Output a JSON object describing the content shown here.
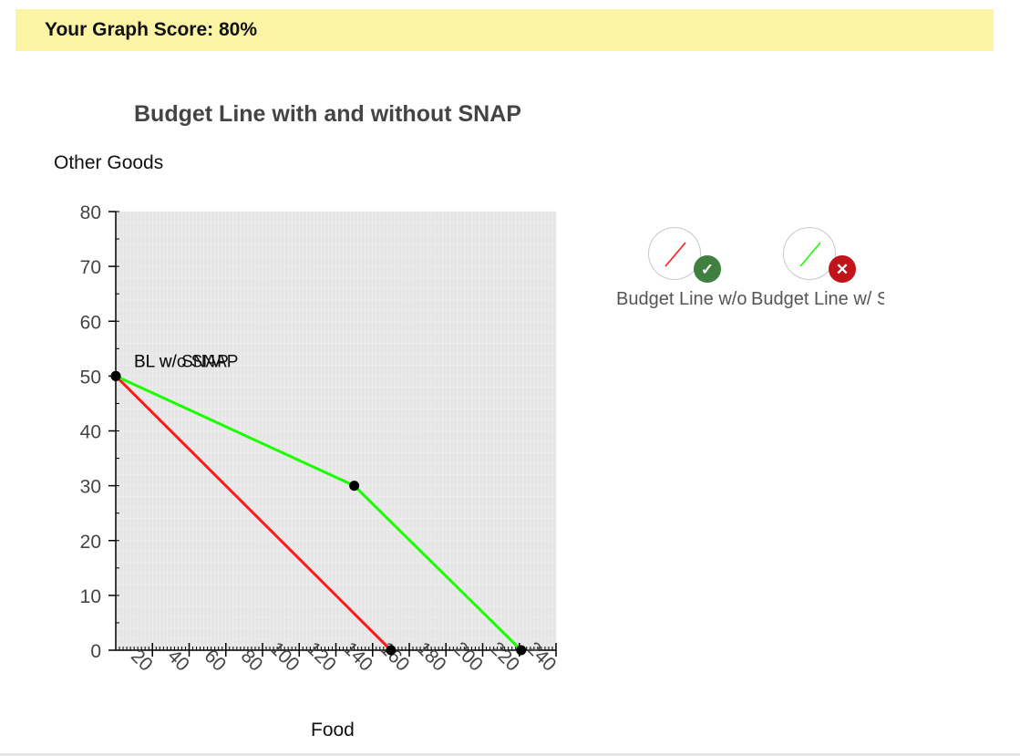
{
  "header": {
    "score_text": "Your Graph Score: 80%"
  },
  "chart_data": {
    "type": "line",
    "title": "Budget Line with and without SNAP",
    "ylabel": "Other Goods",
    "xlabel": "Food",
    "xlim": [
      0,
      240
    ],
    "ylim": [
      0,
      80
    ],
    "x_ticks": [
      20,
      40,
      60,
      80,
      100,
      120,
      140,
      160,
      180,
      200,
      220,
      240
    ],
    "y_ticks": [
      0,
      10,
      20,
      30,
      40,
      50,
      60,
      70,
      80
    ],
    "background": "#e6e6e6",
    "series": [
      {
        "name": "Budget Line w/o SNAP",
        "color": "#ff1a1a",
        "points": [
          [
            0,
            50
          ],
          [
            150,
            0
          ]
        ]
      },
      {
        "name": "Budget Line w/ SNAP",
        "color": "#1aff00",
        "points": [
          [
            0,
            50
          ],
          [
            130,
            30
          ],
          [
            221,
            0
          ]
        ]
      }
    ],
    "point_color": "#000000",
    "annotations": [
      {
        "text": "BL w/o SNAP",
        "x": 0,
        "y": 50
      },
      {
        "text": "BL w/ SNAP",
        "x": 0,
        "y": 50
      }
    ]
  },
  "legend": [
    {
      "label": "Budget Line w/o SNAP",
      "color": "#ff1a1a",
      "status": "correct",
      "status_color": "#3f7f3f",
      "status_glyph": "✓"
    },
    {
      "label": "Budget Line w/ SNAP",
      "color": "#1aff00",
      "status": "incorrect",
      "status_color": "#c0141b",
      "status_glyph": "✕"
    }
  ]
}
